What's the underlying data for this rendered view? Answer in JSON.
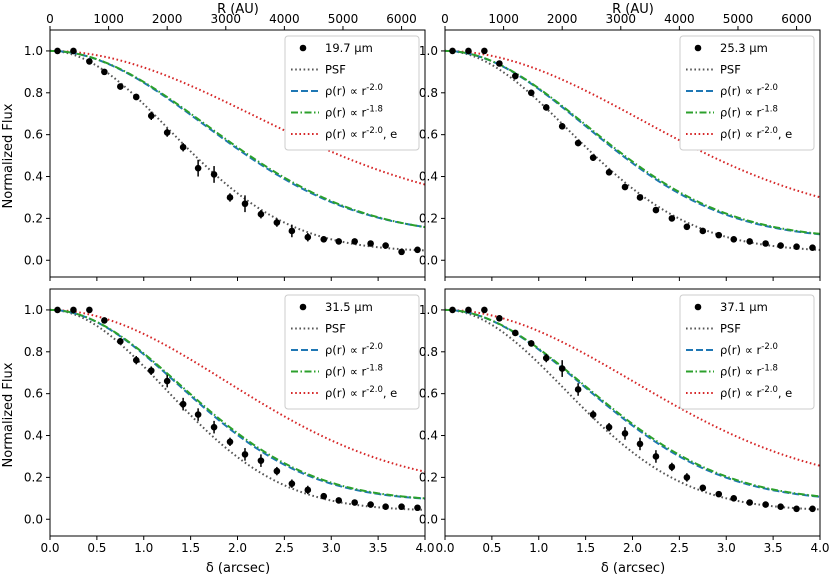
{
  "figure": {
    "top_axis_label": "R (AU)",
    "bottom_axis_label": "δ (arcsec)",
    "y_axis_label": "Normalized Flux"
  },
  "legend_labels": {
    "psf": "PSF",
    "model_a": "ρ(r) ∝ r^-2.0",
    "model_b": "ρ(r) ∝ r^-1.8",
    "model_c": "ρ(r) ∝ r^-2.0, e"
  },
  "colors": {
    "data": "#000000",
    "psf": "#555555",
    "model_a": "#1f77b4",
    "model_b": "#2ca02c",
    "model_c": "#d62728"
  },
  "chart_data": [
    {
      "type": "line",
      "panel": "top-left",
      "wavelength_label": "19.7 μm",
      "xlabel": "",
      "ylabel": "Normalized Flux",
      "top_xlabel": "R (AU)",
      "xlim": [
        0,
        4.0
      ],
      "ylim": [
        -0.08,
        1.1
      ],
      "top_xlim": [
        0,
        6400
      ],
      "x_ticks": [
        "0.0",
        "0.5",
        "1.0",
        "1.5",
        "2.0",
        "2.5",
        "3.0",
        "3.5",
        "4.0"
      ],
      "y_ticks": [
        "0.0",
        "0.2",
        "0.4",
        "0.6",
        "0.8",
        "1.0"
      ],
      "top_ticks": [
        "0",
        "1000",
        "2000",
        "3000",
        "4000",
        "5000",
        "6000"
      ],
      "legend_position": "upper right",
      "half_widths": {
        "psf": 1.5,
        "model_a": 1.92,
        "model_b": 1.95,
        "model_c": 2.55
      },
      "floors": {
        "psf": 0.04,
        "model_a": 0.115,
        "model_b": 0.11,
        "model_c": 0.22
      },
      "data_points": {
        "x": [
          0.08,
          0.25,
          0.42,
          0.58,
          0.75,
          0.92,
          1.08,
          1.25,
          1.42,
          1.58,
          1.75,
          1.92,
          2.08,
          2.25,
          2.42,
          2.58,
          2.75,
          2.92,
          3.08,
          3.25,
          3.42,
          3.58,
          3.75,
          3.92
        ],
        "y": [
          1.0,
          1.0,
          0.95,
          0.9,
          0.83,
          0.78,
          0.69,
          0.61,
          0.54,
          0.44,
          0.41,
          0.3,
          0.27,
          0.22,
          0.18,
          0.14,
          0.11,
          0.1,
          0.09,
          0.09,
          0.08,
          0.07,
          0.04,
          0.05
        ],
        "err": [
          0.01,
          0.01,
          0.01,
          0.01,
          0.015,
          0.015,
          0.02,
          0.02,
          0.02,
          0.04,
          0.04,
          0.02,
          0.04,
          0.02,
          0.02,
          0.03,
          0.02,
          0.01,
          0.01,
          0.01,
          0.01,
          0.01,
          0.01,
          0.01
        ]
      }
    },
    {
      "type": "line",
      "panel": "top-right",
      "wavelength_label": "25.3 μm",
      "xlabel": "",
      "ylabel": "",
      "top_xlabel": "R (AU)",
      "xlim": [
        0,
        4.0
      ],
      "ylim": [
        -0.08,
        1.1
      ],
      "top_xlim": [
        0,
        6400
      ],
      "x_ticks": [
        "0.0",
        "0.5",
        "1.0",
        "1.5",
        "2.0",
        "2.5",
        "3.0",
        "3.5",
        "4.0"
      ],
      "y_ticks": [
        "0.0",
        "0.2",
        "0.4",
        "0.6",
        "0.8",
        "1.0"
      ],
      "top_ticks": [
        "0",
        "1000",
        "2000",
        "3000",
        "4000",
        "5000",
        "6000"
      ],
      "legend_position": "upper right",
      "half_widths": {
        "psf": 1.55,
        "model_a": 1.75,
        "model_b": 1.77,
        "model_c": 2.45
      },
      "floors": {
        "psf": 0.04,
        "model_a": 0.1,
        "model_b": 0.1,
        "model_c": 0.17
      },
      "data_points": {
        "x": [
          0.08,
          0.25,
          0.42,
          0.58,
          0.75,
          0.92,
          1.08,
          1.25,
          1.42,
          1.58,
          1.75,
          1.92,
          2.08,
          2.25,
          2.42,
          2.58,
          2.75,
          2.92,
          3.08,
          3.25,
          3.42,
          3.58,
          3.75,
          3.92
        ],
        "y": [
          1.0,
          1.0,
          1.0,
          0.94,
          0.88,
          0.8,
          0.73,
          0.64,
          0.56,
          0.49,
          0.42,
          0.35,
          0.3,
          0.24,
          0.2,
          0.16,
          0.14,
          0.12,
          0.1,
          0.09,
          0.08,
          0.07,
          0.065,
          0.06
        ],
        "err": [
          0.01,
          0.01,
          0.01,
          0.01,
          0.01,
          0.015,
          0.015,
          0.015,
          0.015,
          0.015,
          0.015,
          0.015,
          0.015,
          0.01,
          0.01,
          0.01,
          0.01,
          0.01,
          0.01,
          0.01,
          0.01,
          0.01,
          0.01,
          0.01
        ]
      }
    },
    {
      "type": "line",
      "panel": "bottom-left",
      "wavelength_label": "31.5 μm",
      "xlabel": "δ (arcsec)",
      "ylabel": "Normalized Flux",
      "xlim": [
        0,
        4.0
      ],
      "ylim": [
        -0.08,
        1.1
      ],
      "x_ticks": [
        "0.0",
        "0.5",
        "1.0",
        "1.5",
        "2.0",
        "2.5",
        "3.0",
        "3.5",
        "4.0"
      ],
      "y_ticks": [
        "0.0",
        "0.2",
        "0.4",
        "0.6",
        "0.8",
        "1.0"
      ],
      "legend_position": "upper right",
      "half_widths": {
        "psf": 1.45,
        "model_a": 1.62,
        "model_b": 1.64,
        "model_c": 2.2
      },
      "floors": {
        "psf": 0.04,
        "model_a": 0.085,
        "model_b": 0.085,
        "model_c": 0.14
      },
      "data_points": {
        "x": [
          0.08,
          0.25,
          0.42,
          0.58,
          0.75,
          0.92,
          1.08,
          1.25,
          1.42,
          1.58,
          1.75,
          1.92,
          2.08,
          2.25,
          2.42,
          2.58,
          2.75,
          2.92,
          3.08,
          3.25,
          3.42,
          3.58,
          3.75,
          3.92
        ],
        "y": [
          1.0,
          1.0,
          1.0,
          0.95,
          0.85,
          0.76,
          0.71,
          0.66,
          0.55,
          0.5,
          0.44,
          0.37,
          0.31,
          0.28,
          0.23,
          0.17,
          0.14,
          0.11,
          0.09,
          0.08,
          0.07,
          0.06,
          0.06,
          0.055
        ],
        "err": [
          0.01,
          0.01,
          0.01,
          0.01,
          0.015,
          0.02,
          0.02,
          0.03,
          0.03,
          0.03,
          0.03,
          0.02,
          0.03,
          0.03,
          0.02,
          0.02,
          0.02,
          0.01,
          0.01,
          0.01,
          0.01,
          0.01,
          0.01,
          0.01
        ]
      }
    },
    {
      "type": "line",
      "panel": "bottom-right",
      "wavelength_label": "37.1 μm",
      "xlabel": "δ (arcsec)",
      "ylabel": "",
      "xlim": [
        0,
        4.0
      ],
      "ylim": [
        -0.08,
        1.1
      ],
      "x_ticks": [
        "0.0",
        "0.5",
        "1.0",
        "1.5",
        "2.0",
        "2.5",
        "3.0",
        "3.5",
        "4.0"
      ],
      "y_ticks": [
        "0.0",
        "0.2",
        "0.4",
        "0.6",
        "0.8",
        "1.0"
      ],
      "legend_position": "upper right",
      "half_widths": {
        "psf": 1.5,
        "model_a": 1.73,
        "model_b": 1.75,
        "model_c": 2.35
      },
      "floors": {
        "psf": 0.04,
        "model_a": 0.085,
        "model_b": 0.085,
        "model_c": 0.14
      },
      "data_points": {
        "x": [
          0.08,
          0.25,
          0.42,
          0.58,
          0.75,
          0.92,
          1.08,
          1.25,
          1.42,
          1.58,
          1.75,
          1.92,
          2.08,
          2.25,
          2.42,
          2.58,
          2.75,
          2.92,
          3.08,
          3.25,
          3.42,
          3.58,
          3.75,
          3.92
        ],
        "y": [
          1.0,
          1.0,
          1.0,
          0.96,
          0.89,
          0.84,
          0.77,
          0.72,
          0.62,
          0.5,
          0.44,
          0.41,
          0.36,
          0.3,
          0.25,
          0.2,
          0.15,
          0.12,
          0.1,
          0.08,
          0.07,
          0.06,
          0.05,
          0.05
        ],
        "err": [
          0.01,
          0.01,
          0.01,
          0.01,
          0.01,
          0.015,
          0.02,
          0.04,
          0.03,
          0.02,
          0.02,
          0.03,
          0.03,
          0.03,
          0.02,
          0.02,
          0.01,
          0.01,
          0.01,
          0.01,
          0.01,
          0.01,
          0.01,
          0.01
        ]
      }
    }
  ]
}
